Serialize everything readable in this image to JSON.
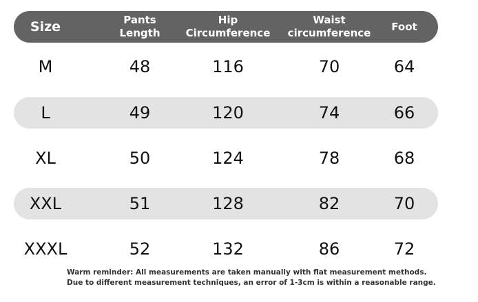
{
  "table": {
    "headers": [
      "Size",
      "Pants\nLength",
      "Hip\nCircumference",
      "Waist\ncircumference",
      "Foot"
    ],
    "rows": [
      [
        "M",
        "48",
        "116",
        "70",
        "64"
      ],
      [
        "L",
        "49",
        "120",
        "74",
        "66"
      ],
      [
        "XL",
        "50",
        "124",
        "78",
        "68"
      ],
      [
        "XXL",
        "51",
        "128",
        "82",
        "70"
      ],
      [
        "XXXL",
        "52",
        "132",
        "86",
        "72"
      ]
    ]
  },
  "note": {
    "line1": "Warm reminder: All measurements are taken manually with flat measurement methods.",
    "line2": "Due to different measurement techniques, an error of 1-3cm is within a reasonable range."
  },
  "colors": {
    "header_bg": "#636363",
    "stripe_bg": "#e3e3e3",
    "text": "#111111"
  }
}
